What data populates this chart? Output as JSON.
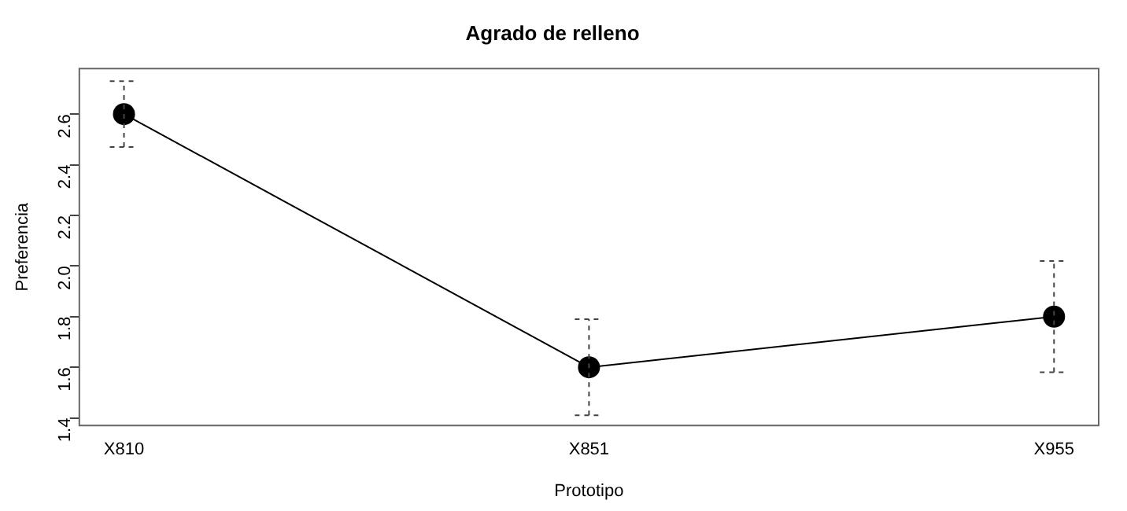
{
  "chart_data": {
    "type": "line",
    "title": "Agrado de relleno",
    "xlabel": "Prototipo",
    "ylabel": "Preferencia",
    "categories": [
      "X810",
      "X851",
      "X955"
    ],
    "series": [
      {
        "color": "#000000",
        "values": [
          2.6,
          1.6,
          1.8
        ],
        "errors": [
          [
            2.47,
            2.73
          ],
          [
            1.41,
            1.79
          ],
          [
            1.58,
            2.02
          ]
        ]
      }
    ],
    "ylim": [
      1.37,
      2.78
    ],
    "yticks": [
      1.4,
      1.6,
      1.8,
      {
        "value": 2,
        "label": "2.0"
      },
      2.2,
      2.4,
      2.6
    ],
    "marker": "circle",
    "line_style": "solid",
    "grid": false,
    "legend": false
  }
}
